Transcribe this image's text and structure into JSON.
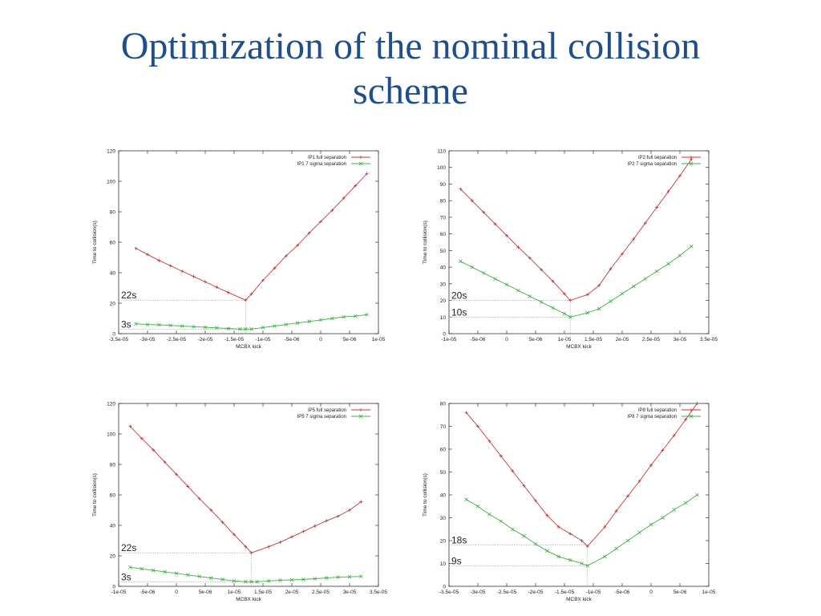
{
  "slide": {
    "title_line1": "Optimization of the nominal collision",
    "title_line2": "scheme"
  },
  "colors": {
    "full": "#c0393b",
    "sigma": "#3cb043",
    "title": "#1f4e8c"
  },
  "chart_data": [
    {
      "type": "line",
      "xlabel": "MCBX kick",
      "ylabel": "Time to collision(s)",
      "xlim": [
        -3.5e-05,
        1e-05
      ],
      "ylim": [
        0,
        120
      ],
      "xticks": [
        -3.5e-05,
        -3e-05,
        -2.5e-05,
        -2e-05,
        -1.5e-05,
        -1e-05,
        -5e-06,
        0,
        5e-06,
        1e-05
      ],
      "xtick_labels": [
        "-3.5e-05",
        "-3e-05",
        "-2.5e-05",
        "-2e-05",
        "-1.5e-05",
        "-1e-05",
        "-5e-06",
        "0",
        "5e-06",
        "1e-05"
      ],
      "yticks": [
        0,
        20,
        40,
        60,
        80,
        100,
        120
      ],
      "ytick_labels": [
        "0",
        "20",
        "40",
        "60",
        "80",
        "100",
        "120"
      ],
      "annotations": [
        {
          "text": "22s",
          "x": -1.3e-05,
          "y": 22
        },
        {
          "text": "3s",
          "x": -1.3e-05,
          "y": 3
        }
      ],
      "series": [
        {
          "name": "IP1 full separation",
          "color": "#c0393b",
          "marker": "plus",
          "x": [
            -3.2e-05,
            -3e-05,
            -2.8e-05,
            -2.6e-05,
            -2.4e-05,
            -2.2e-05,
            -2e-05,
            -1.8e-05,
            -1.6e-05,
            -1.3e-05,
            -1.2e-05,
            -1e-05,
            -8e-06,
            -6e-06,
            -4e-06,
            -2e-06,
            0,
            2e-06,
            4e-06,
            6e-06,
            8e-06
          ],
          "y": [
            56,
            52,
            48,
            44.5,
            41,
            37.5,
            34,
            30.5,
            27,
            22,
            26,
            35,
            43,
            51,
            58,
            66,
            73.5,
            81,
            89,
            97,
            105
          ]
        },
        {
          "name": "IP1 7 sigma separation",
          "color": "#3cb043",
          "marker": "x",
          "x": [
            -3.2e-05,
            -3e-05,
            -2.8e-05,
            -2.6e-05,
            -2.4e-05,
            -2.2e-05,
            -2e-05,
            -1.8e-05,
            -1.6e-05,
            -1.4e-05,
            -1.3e-05,
            -1.2e-05,
            -1e-05,
            -8e-06,
            -6e-06,
            -4e-06,
            -2e-06,
            0,
            2e-06,
            4e-06,
            6e-06,
            8e-06
          ],
          "y": [
            6.5,
            6,
            5.8,
            5.4,
            5,
            4.6,
            4.2,
            3.8,
            3.4,
            3,
            3,
            3,
            4,
            5,
            6,
            7,
            8,
            9,
            10,
            11,
            11.5,
            12.5
          ]
        }
      ]
    },
    {
      "type": "line",
      "xlabel": "MCBX kick",
      "ylabel": "Time to collision(s)",
      "xlim": [
        -1e-05,
        3.5e-05
      ],
      "ylim": [
        0,
        110
      ],
      "xticks": [
        -1e-05,
        -5e-06,
        0,
        5e-06,
        1e-05,
        1.5e-05,
        2e-05,
        2.5e-05,
        3e-05,
        3.5e-05
      ],
      "xtick_labels": [
        "-1e-05",
        "-5e-06",
        "0",
        "5e-06",
        "1e-05",
        "1.5e-05",
        "2e-05",
        "2.5e-05",
        "3e-05",
        "3.5e-05"
      ],
      "yticks": [
        0,
        10,
        20,
        30,
        40,
        50,
        60,
        70,
        80,
        90,
        100,
        110
      ],
      "ytick_labels": [
        "0",
        "10",
        "20",
        "30",
        "40",
        "50",
        "60",
        "70",
        "80",
        "90",
        "100",
        "110"
      ],
      "annotations": [
        {
          "text": "20s",
          "x": 1.1e-05,
          "y": 20
        },
        {
          "text": "10s",
          "x": 1.1e-05,
          "y": 10
        }
      ],
      "series": [
        {
          "name": "IP2 full separation",
          "color": "#c0393b",
          "marker": "plus",
          "x": [
            -8e-06,
            -6e-06,
            -4e-06,
            -2e-06,
            0,
            2e-06,
            4e-06,
            6e-06,
            8e-06,
            1e-05,
            1.1e-05,
            1.4e-05,
            1.6e-05,
            1.8e-05,
            2e-05,
            2.2e-05,
            2.4e-05,
            2.6e-05,
            2.8e-05,
            3e-05,
            3.2e-05
          ],
          "y": [
            87,
            80,
            73,
            66,
            59,
            52,
            45.5,
            38.5,
            31.5,
            24,
            20,
            23.5,
            29,
            39,
            48,
            57,
            66.5,
            76,
            85.5,
            95,
            105
          ]
        },
        {
          "name": "IP2 7 sigma separation",
          "color": "#3cb043",
          "marker": "x",
          "x": [
            -8e-06,
            -6e-06,
            -4e-06,
            -2e-06,
            0,
            2e-06,
            4e-06,
            6e-06,
            8e-06,
            1e-05,
            1.1e-05,
            1.4e-05,
            1.6e-05,
            1.8e-05,
            2e-05,
            2.2e-05,
            2.4e-05,
            2.6e-05,
            2.8e-05,
            3e-05,
            3.2e-05
          ],
          "y": [
            43.5,
            40,
            36.5,
            33,
            29.5,
            26,
            22.5,
            19,
            15.5,
            12,
            10,
            12.5,
            15,
            19.5,
            24,
            28.5,
            33,
            37.5,
            42,
            47,
            52.5
          ]
        }
      ]
    },
    {
      "type": "line",
      "xlabel": "MCBX kick",
      "ylabel": "Time to collision(s)",
      "xlim": [
        -1e-05,
        3.5e-05
      ],
      "ylim": [
        0,
        120
      ],
      "xticks": [
        -1e-05,
        -5e-06,
        0,
        5e-06,
        1e-05,
        1.5e-05,
        2e-05,
        2.5e-05,
        3e-05,
        3.5e-05
      ],
      "xtick_labels": [
        "-1e-05",
        "-5e-06",
        "0",
        "5e-06",
        "1e-05",
        "1.5e-05",
        "2e-05",
        "2.5e-05",
        "3e-05",
        "3.5e-05"
      ],
      "yticks": [
        0,
        20,
        40,
        60,
        80,
        100,
        120
      ],
      "ytick_labels": [
        "0",
        "20",
        "40",
        "60",
        "80",
        "100",
        "120"
      ],
      "annotations": [
        {
          "text": "22s",
          "x": 1.3e-05,
          "y": 22
        },
        {
          "text": "3s",
          "x": 1.3e-05,
          "y": 3
        }
      ],
      "series": [
        {
          "name": "IP5 full separation",
          "color": "#c0393b",
          "marker": "plus",
          "x": [
            -8e-06,
            -6e-06,
            -4e-06,
            -2e-06,
            0,
            2e-06,
            4e-06,
            6e-06,
            8e-06,
            1e-05,
            1.2e-05,
            1.3e-05,
            1.6e-05,
            1.8e-05,
            2e-05,
            2.2e-05,
            2.4e-05,
            2.6e-05,
            2.8e-05,
            3e-05,
            3.2e-05
          ],
          "y": [
            105,
            97,
            89.5,
            81.5,
            73.5,
            65.5,
            57.5,
            50,
            42,
            34,
            26,
            22,
            26,
            29,
            32.5,
            36,
            39.5,
            43,
            46,
            50,
            55.5
          ]
        },
        {
          "name": "IP5 7 sigma separation",
          "color": "#3cb043",
          "marker": "x",
          "x": [
            -8e-06,
            -6e-06,
            -4e-06,
            -2e-06,
            0,
            2e-06,
            4e-06,
            6e-06,
            8e-06,
            1e-05,
            1.2e-05,
            1.3e-05,
            1.4e-05,
            1.6e-05,
            1.8e-05,
            2e-05,
            2.2e-05,
            2.4e-05,
            2.6e-05,
            2.8e-05,
            3e-05,
            3.2e-05
          ],
          "y": [
            12.5,
            11.5,
            10.5,
            9.5,
            8.5,
            7.5,
            6.5,
            5.5,
            4.5,
            3.5,
            3,
            3,
            3,
            3.5,
            4,
            4.2,
            4.5,
            5,
            5.5,
            6,
            6.2,
            6.5
          ]
        }
      ]
    },
    {
      "type": "line",
      "xlabel": "MCBX kick",
      "ylabel": "Time to collision(s)",
      "xlim": [
        -3.5e-05,
        1e-05
      ],
      "ylim": [
        0,
        80
      ],
      "xticks": [
        -3.5e-05,
        -3e-05,
        -2.5e-05,
        -2e-05,
        -1.5e-05,
        -1e-05,
        -5e-06,
        0,
        5e-06,
        1e-05
      ],
      "xtick_labels": [
        "-3.5e-05",
        "-3e-05",
        "-2.5e-05",
        "-2e-05",
        "-1.5e-05",
        "-1e-05",
        "-5e-06",
        "0",
        "5e-06",
        "1e-05"
      ],
      "yticks": [
        0,
        10,
        20,
        30,
        40,
        50,
        60,
        70,
        80
      ],
      "ytick_labels": [
        "0",
        "10",
        "20",
        "30",
        "40",
        "50",
        "60",
        "70",
        "80"
      ],
      "annotations": [
        {
          "text": "18s",
          "x": -1.1e-05,
          "y": 18
        },
        {
          "text": "9s",
          "x": -1.1e-05,
          "y": 9
        }
      ],
      "series": [
        {
          "name": "IP8 full separation",
          "color": "#c0393b",
          "marker": "plus",
          "x": [
            -3.2e-05,
            -3e-05,
            -2.8e-05,
            -2.6e-05,
            -2.4e-05,
            -2.2e-05,
            -2e-05,
            -1.8e-05,
            -1.6e-05,
            -1.4e-05,
            -1.2e-05,
            -1.1e-05,
            -8e-06,
            -6e-06,
            -4e-06,
            -2e-06,
            0,
            2e-06,
            4e-06,
            6e-06,
            8e-06
          ],
          "y": [
            76,
            70,
            63.5,
            57,
            50.5,
            44,
            37.5,
            31,
            26,
            23,
            20,
            17.5,
            26,
            33,
            39.5,
            46,
            53,
            59.5,
            66,
            73,
            80
          ]
        },
        {
          "name": "IP8 7 sigma separation",
          "color": "#3cb043",
          "marker": "x",
          "x": [
            -3.2e-05,
            -3e-05,
            -2.8e-05,
            -2.6e-05,
            -2.4e-05,
            -2.2e-05,
            -2e-05,
            -1.8e-05,
            -1.6e-05,
            -1.4e-05,
            -1.2e-05,
            -1.1e-05,
            -8e-06,
            -6e-06,
            -4e-06,
            -2e-06,
            0,
            2e-06,
            4e-06,
            6e-06,
            8e-06
          ],
          "y": [
            38,
            35,
            31.5,
            28.5,
            25,
            22,
            18.5,
            15.5,
            13,
            11.5,
            10,
            9,
            13,
            16.5,
            20,
            23.5,
            27,
            30,
            33.5,
            36.5,
            40
          ]
        }
      ]
    }
  ]
}
